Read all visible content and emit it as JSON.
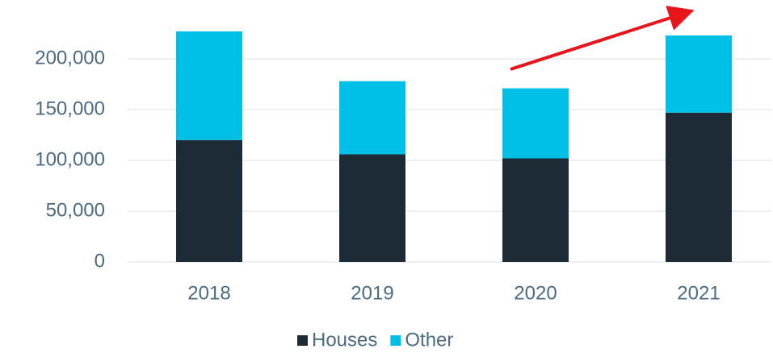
{
  "chart_data": {
    "type": "bar",
    "stacked": true,
    "categories": [
      "2018",
      "2019",
      "2020",
      "2021"
    ],
    "series": [
      {
        "name": "Houses",
        "color": "#1c2b36",
        "values": [
          120000,
          106000,
          102000,
          147000
        ]
      },
      {
        "name": "Other",
        "color": "#00bfe6",
        "values": [
          107000,
          72000,
          69000,
          76000
        ]
      }
    ],
    "ylim": [
      0,
      250000
    ],
    "yticks": [
      0,
      {
        "value": 50000,
        "label": "50,000"
      },
      {
        "value": 100000,
        "label": "100,000"
      },
      {
        "value": 150000,
        "label": "150,000"
      },
      {
        "value": 200000,
        "label": "200,000"
      }
    ],
    "grid": true,
    "legend": "bottom"
  }
}
